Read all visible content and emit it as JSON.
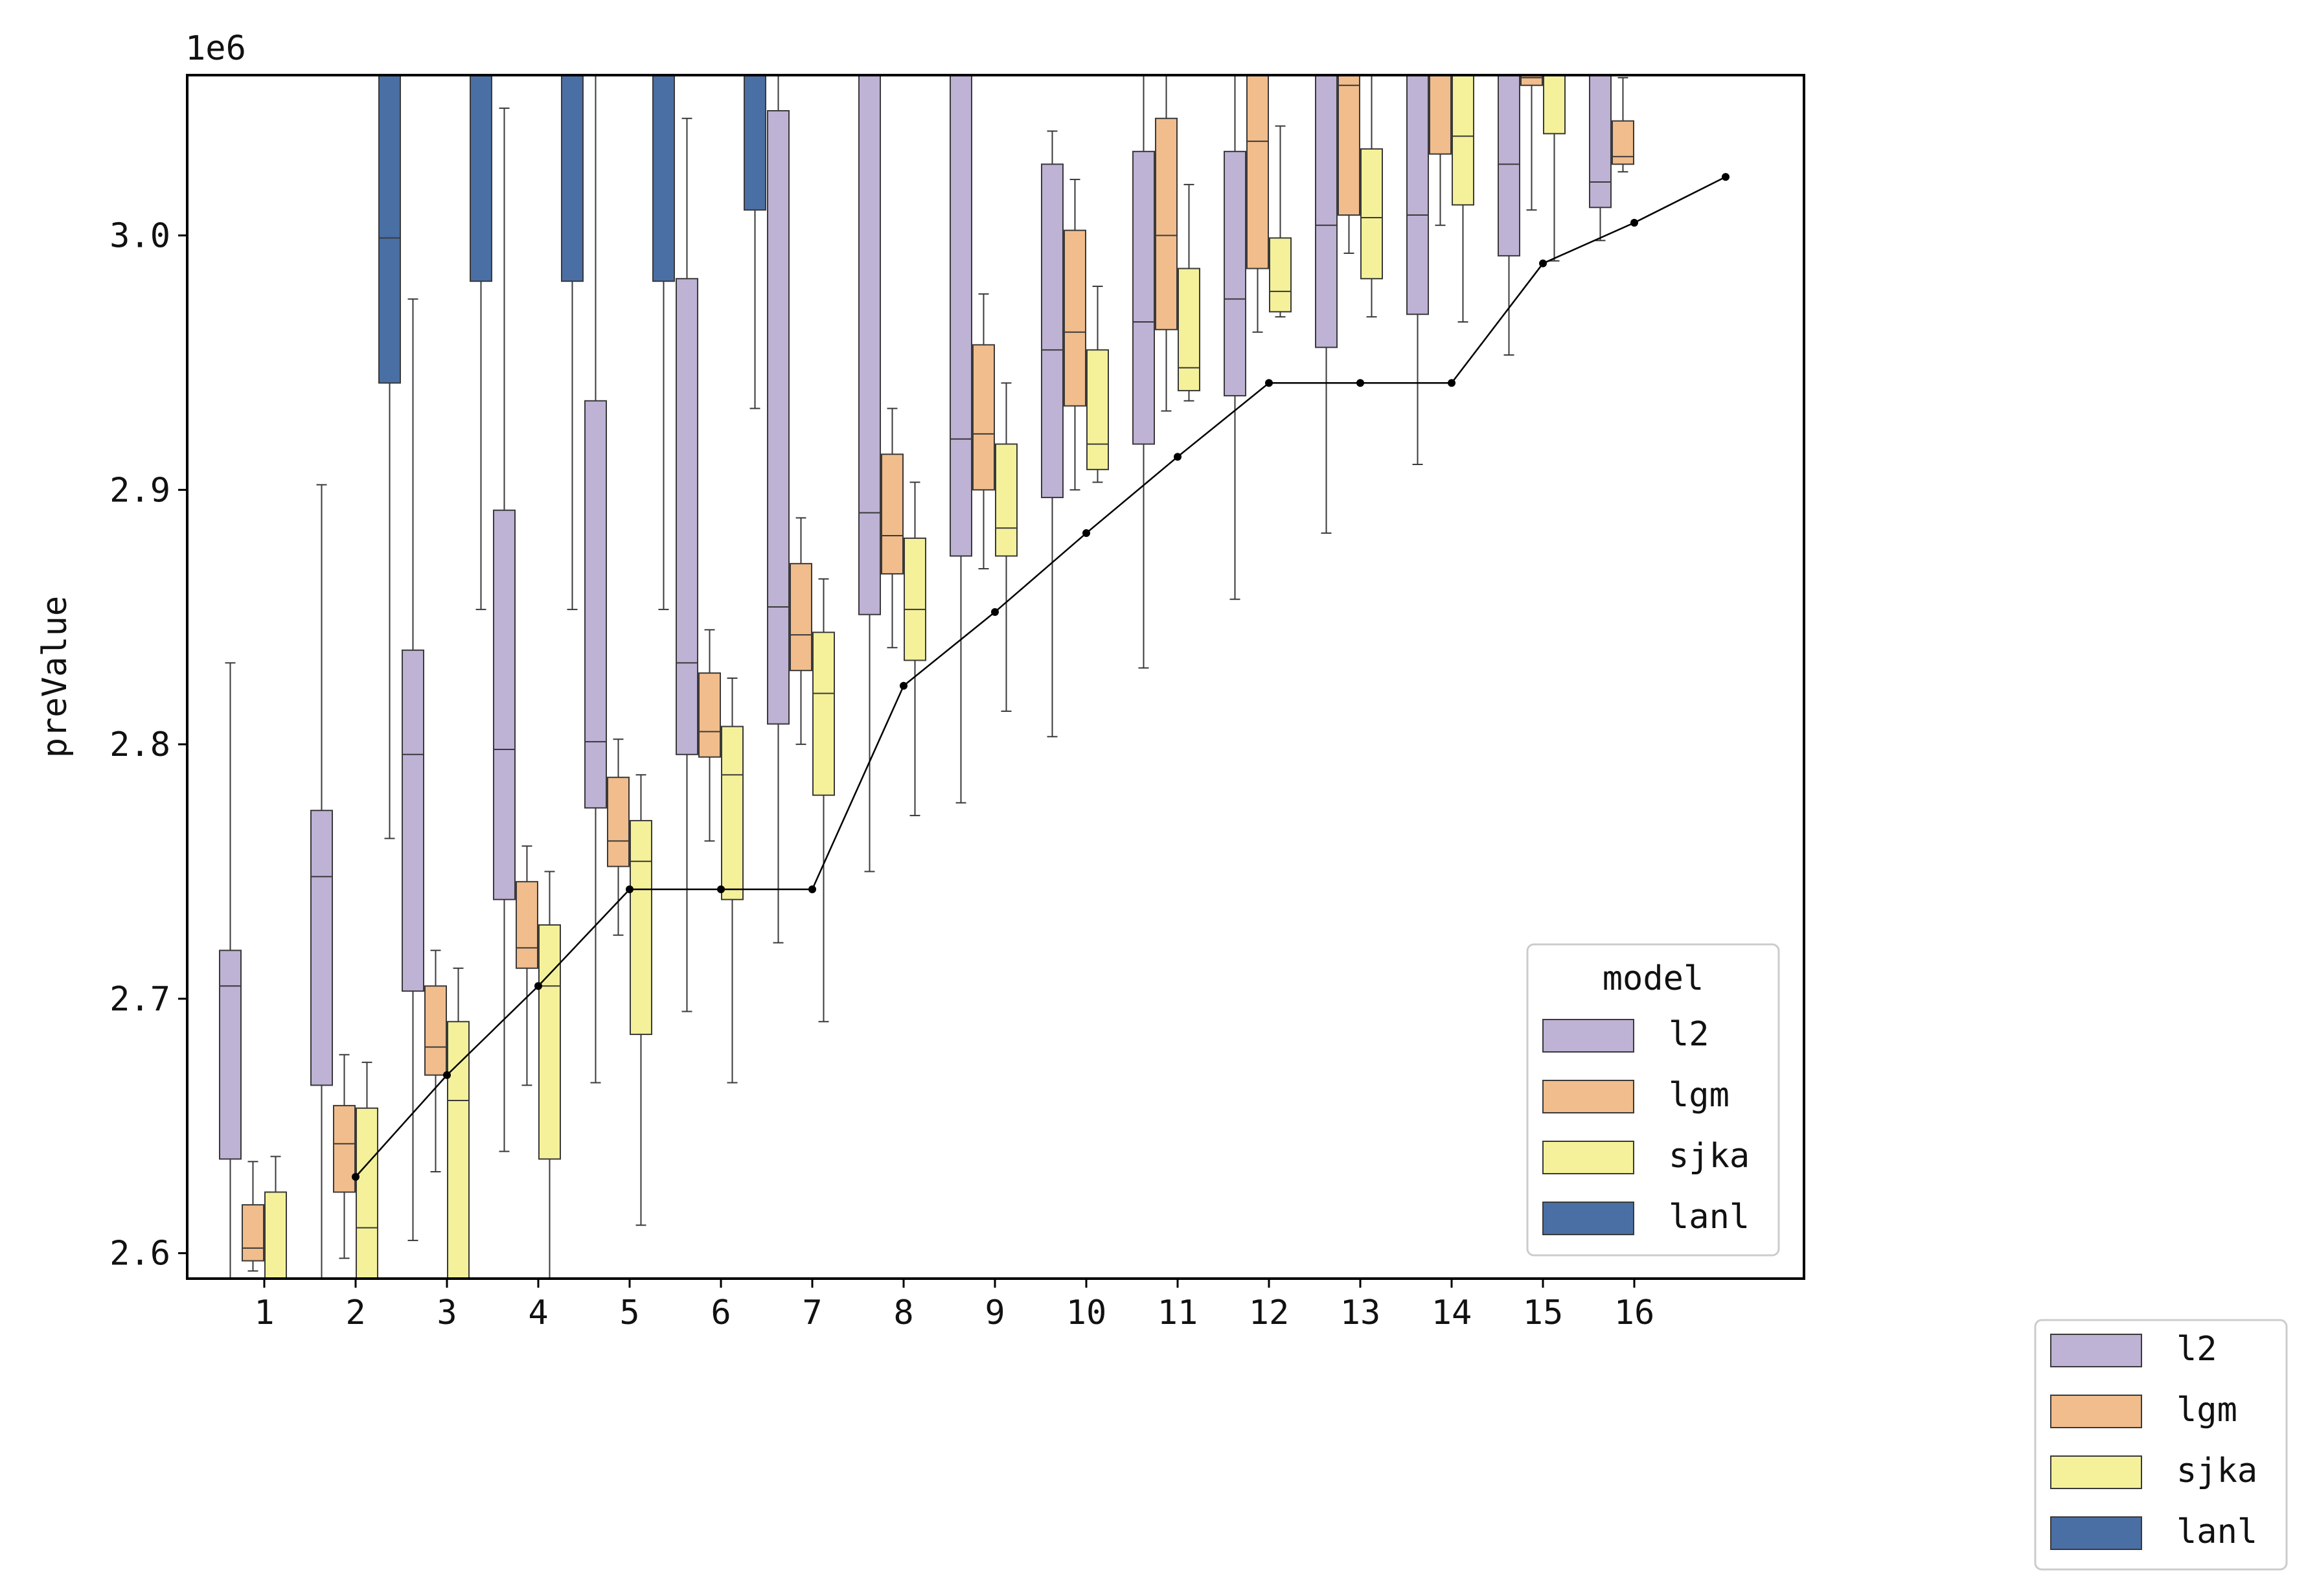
{
  "chart_data": {
    "type": "box",
    "title": "",
    "xlabel": "",
    "ylabel": "preValue",
    "y_offset_label": "1e6",
    "y_scale": 1000000,
    "ylim": [
      2.59,
      3.063
    ],
    "yticks": [
      2.6,
      2.7,
      2.8,
      2.9,
      3.0
    ],
    "ytick_labels": [
      "2.6",
      "2.7",
      "2.8",
      "2.9",
      "3.0"
    ],
    "categories": [
      "1",
      "2",
      "3",
      "4",
      "5",
      "6",
      "7",
      "8",
      "9",
      "10",
      "11",
      "12",
      "13",
      "14",
      "15",
      "16"
    ],
    "legend_inside": {
      "title": "model",
      "placement": "lower right",
      "entries": [
        "l2",
        "lgm",
        "sjka",
        "lanl"
      ]
    },
    "legend_outside": {
      "placement": "outside lower right",
      "entries": [
        "l2",
        "lgm",
        "sjka",
        "lanl"
      ]
    },
    "series": [
      {
        "name": "l2",
        "color": "#beb2d5",
        "boxes": [
          {
            "cat": 1,
            "whislo": 2.56,
            "q1": 2.637,
            "med": 2.705,
            "q3": 2.719,
            "whishi": 2.832
          },
          {
            "cat": 2,
            "whislo": 2.56,
            "q1": 2.666,
            "med": 2.748,
            "q3": 2.774,
            "whishi": 2.902
          },
          {
            "cat": 3,
            "whislo": 2.605,
            "q1": 2.703,
            "med": 2.796,
            "q3": 2.837,
            "whishi": 2.975
          },
          {
            "cat": 4,
            "whislo": 2.64,
            "q1": 2.739,
            "med": 2.798,
            "q3": 2.892,
            "whishi": 3.05
          },
          {
            "cat": 5,
            "whislo": 2.667,
            "q1": 2.775,
            "med": 2.801,
            "q3": 2.935,
            "whishi": 3.08
          },
          {
            "cat": 6,
            "whislo": 2.695,
            "q1": 2.796,
            "med": 2.832,
            "q3": 2.983,
            "whishi": 3.046
          },
          {
            "cat": 7,
            "whislo": 2.722,
            "q1": 2.808,
            "med": 2.854,
            "q3": 3.049,
            "whishi": 3.1
          },
          {
            "cat": 8,
            "whislo": 2.75,
            "q1": 2.851,
            "med": 2.891,
            "q3": 3.1,
            "whishi": 3.15
          },
          {
            "cat": 9,
            "whislo": 2.777,
            "q1": 2.874,
            "med": 2.92,
            "q3": 3.1,
            "whishi": 3.15
          },
          {
            "cat": 10,
            "whislo": 2.803,
            "q1": 2.897,
            "med": 2.955,
            "q3": 3.028,
            "whishi": 3.041
          },
          {
            "cat": 11,
            "whislo": 2.83,
            "q1": 2.918,
            "med": 2.966,
            "q3": 3.033,
            "whishi": 3.1
          },
          {
            "cat": 12,
            "whislo": 2.857,
            "q1": 2.937,
            "med": 2.975,
            "q3": 3.033,
            "whishi": 3.1
          },
          {
            "cat": 13,
            "whislo": 2.883,
            "q1": 2.956,
            "med": 3.004,
            "q3": 3.063,
            "whishi": 3.1
          },
          {
            "cat": 14,
            "whislo": 2.91,
            "q1": 2.969,
            "med": 3.008,
            "q3": 3.1,
            "whishi": 3.15
          },
          {
            "cat": 15,
            "whislo": 2.953,
            "q1": 2.992,
            "med": 3.028,
            "q3": 3.1,
            "whishi": 3.15
          },
          {
            "cat": 16,
            "whislo": 2.998,
            "q1": 3.011,
            "med": 3.021,
            "q3": 3.1,
            "whishi": 3.15
          }
        ]
      },
      {
        "name": "lgm",
        "color": "#f1bd8c",
        "boxes": [
          {
            "cat": 1,
            "whislo": 2.593,
            "q1": 2.597,
            "med": 2.602,
            "q3": 2.619,
            "whishi": 2.636
          },
          {
            "cat": 2,
            "whislo": 2.598,
            "q1": 2.624,
            "med": 2.643,
            "q3": 2.658,
            "whishi": 2.678
          },
          {
            "cat": 3,
            "whislo": 2.632,
            "q1": 2.67,
            "med": 2.681,
            "q3": 2.705,
            "whishi": 2.719
          },
          {
            "cat": 4,
            "whislo": 2.666,
            "q1": 2.712,
            "med": 2.72,
            "q3": 2.746,
            "whishi": 2.76
          },
          {
            "cat": 5,
            "whislo": 2.725,
            "q1": 2.752,
            "med": 2.762,
            "q3": 2.787,
            "whishi": 2.802
          },
          {
            "cat": 6,
            "whislo": 2.762,
            "q1": 2.795,
            "med": 2.805,
            "q3": 2.828,
            "whishi": 2.845
          },
          {
            "cat": 7,
            "whislo": 2.8,
            "q1": 2.829,
            "med": 2.843,
            "q3": 2.871,
            "whishi": 2.889
          },
          {
            "cat": 8,
            "whislo": 2.838,
            "q1": 2.867,
            "med": 2.882,
            "q3": 2.914,
            "whishi": 2.932
          },
          {
            "cat": 9,
            "whislo": 2.869,
            "q1": 2.9,
            "med": 2.922,
            "q3": 2.957,
            "whishi": 2.977
          },
          {
            "cat": 10,
            "whislo": 2.9,
            "q1": 2.933,
            "med": 2.962,
            "q3": 3.002,
            "whishi": 3.022
          },
          {
            "cat": 11,
            "whislo": 2.931,
            "q1": 2.963,
            "med": 3.0,
            "q3": 3.046,
            "whishi": 3.1
          },
          {
            "cat": 12,
            "whislo": 2.962,
            "q1": 2.987,
            "med": 3.037,
            "q3": 3.1,
            "whishi": 3.15
          },
          {
            "cat": 13,
            "whislo": 2.993,
            "q1": 3.008,
            "med": 3.059,
            "q3": 3.1,
            "whishi": 3.15
          },
          {
            "cat": 14,
            "whislo": 3.004,
            "q1": 3.032,
            "med": 3.08,
            "q3": 3.1,
            "whishi": 3.15
          },
          {
            "cat": 15,
            "whislo": 3.01,
            "q1": 3.059,
            "med": 3.062,
            "q3": 3.1,
            "whishi": 3.15
          },
          {
            "cat": 16,
            "whislo": 3.025,
            "q1": 3.028,
            "med": 3.031,
            "q3": 3.045,
            "whishi": 3.062
          }
        ]
      },
      {
        "name": "sjka",
        "color": "#f4f19a",
        "boxes": [
          {
            "cat": 1,
            "whislo": 2.58,
            "q1": 2.58,
            "med": 2.585,
            "q3": 2.624,
            "whishi": 2.638
          },
          {
            "cat": 2,
            "whislo": 2.58,
            "q1": 2.58,
            "med": 2.61,
            "q3": 2.657,
            "whishi": 2.675
          },
          {
            "cat": 3,
            "whislo": 2.58,
            "q1": 2.58,
            "med": 2.66,
            "q3": 2.691,
            "whishi": 2.712
          },
          {
            "cat": 4,
            "whislo": 2.58,
            "q1": 2.637,
            "med": 2.705,
            "q3": 2.729,
            "whishi": 2.75
          },
          {
            "cat": 5,
            "whislo": 2.611,
            "q1": 2.686,
            "med": 2.754,
            "q3": 2.77,
            "whishi": 2.788
          },
          {
            "cat": 6,
            "whislo": 2.667,
            "q1": 2.739,
            "med": 2.788,
            "q3": 2.807,
            "whishi": 2.826
          },
          {
            "cat": 7,
            "whislo": 2.691,
            "q1": 2.78,
            "med": 2.82,
            "q3": 2.844,
            "whishi": 2.865
          },
          {
            "cat": 8,
            "whislo": 2.772,
            "q1": 2.833,
            "med": 2.853,
            "q3": 2.881,
            "whishi": 2.903
          },
          {
            "cat": 9,
            "whislo": 2.813,
            "q1": 2.874,
            "med": 2.885,
            "q3": 2.918,
            "whishi": 2.942
          },
          {
            "cat": 10,
            "whislo": 2.903,
            "q1": 2.908,
            "med": 2.918,
            "q3": 2.955,
            "whishi": 2.98
          },
          {
            "cat": 11,
            "whislo": 2.935,
            "q1": 2.939,
            "med": 2.948,
            "q3": 2.987,
            "whishi": 3.02
          },
          {
            "cat": 12,
            "whislo": 2.968,
            "q1": 2.97,
            "med": 2.978,
            "q3": 2.999,
            "whishi": 3.043
          },
          {
            "cat": 13,
            "whislo": 2.968,
            "q1": 2.983,
            "med": 3.007,
            "q3": 3.034,
            "whishi": 3.063
          },
          {
            "cat": 14,
            "whislo": 2.966,
            "q1": 3.012,
            "med": 3.039,
            "q3": 3.063,
            "whishi": 3.1
          },
          {
            "cat": 15,
            "whislo": 2.99,
            "q1": 3.04,
            "med": 3.08,
            "q3": 3.1,
            "whishi": 3.15
          }
        ]
      },
      {
        "name": "lanl",
        "color": "#4a6fa5",
        "boxes": [
          {
            "cat": 2,
            "whislo": 2.763,
            "q1": 2.942,
            "med": 2.999,
            "q3": 3.1,
            "whishi": 3.15
          },
          {
            "cat": 3,
            "whislo": 2.853,
            "q1": 2.982,
            "med": 3.07,
            "q3": 3.1,
            "whishi": 3.15
          },
          {
            "cat": 4,
            "whislo": 2.853,
            "q1": 2.982,
            "med": 3.07,
            "q3": 3.1,
            "whishi": 3.15
          },
          {
            "cat": 5,
            "whislo": 2.853,
            "q1": 2.982,
            "med": 3.07,
            "q3": 3.1,
            "whishi": 3.15
          },
          {
            "cat": 6,
            "whislo": 2.932,
            "q1": 3.01,
            "med": 3.08,
            "q3": 3.1,
            "whishi": 3.15
          }
        ]
      }
    ],
    "line": {
      "x": [
        2,
        3,
        4,
        5,
        6,
        7,
        8,
        9,
        10,
        11,
        12,
        13,
        14,
        15,
        16,
        17
      ],
      "y": [
        2.63,
        2.67,
        2.705,
        2.743,
        2.743,
        2.743,
        2.823,
        2.852,
        2.883,
        2.913,
        2.942,
        2.942,
        2.942,
        2.989,
        3.005,
        3.023
      ],
      "color": "#000000"
    }
  }
}
